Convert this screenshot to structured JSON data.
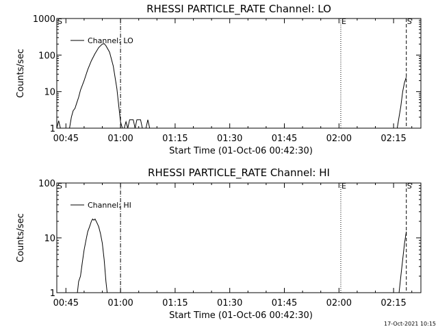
{
  "timestamp": "17-Oct-2021 10:15",
  "chart_data": [
    {
      "type": "line",
      "title": "RHESSI PARTICLE_RATE Channel: LO",
      "xlabel": "Start Time (01-Oct-06 00:42:30)",
      "ylabel": "Counts/sec",
      "yscale": "log",
      "xlim": [
        "00:42:30",
        "02:22:30"
      ],
      "ylim": [
        1,
        1000
      ],
      "xticks": [
        "00:45",
        "01:00",
        "01:15",
        "01:30",
        "01:45",
        "02:00",
        "02:15"
      ],
      "yticks": [
        "1",
        "10",
        "100",
        "1000"
      ],
      "grid": false,
      "legend_position": "top-left",
      "markers": [
        {
          "label": "S",
          "time": "00:42:30",
          "style": "solid"
        },
        {
          "label": "",
          "time": "01:00:00",
          "style": "dash-dot"
        },
        {
          "label": "E",
          "time": "02:00:30",
          "style": "dotted"
        },
        {
          "label": "S",
          "time": "02:18:30",
          "style": "dashed"
        }
      ],
      "series": [
        {
          "name": "Channel: LO",
          "color": "#000000",
          "points": [
            [
              "00:42:30",
              1
            ],
            [
              "00:43:00",
              1.6
            ],
            [
              "00:43:30",
              1
            ],
            [
              "00:46:00",
              1
            ],
            [
              "00:46:30",
              2
            ],
            [
              "00:47:00",
              3
            ],
            [
              "00:47:30",
              3.5
            ],
            [
              "00:48:00",
              5
            ],
            [
              "00:48:30",
              7
            ],
            [
              "00:49:00",
              11
            ],
            [
              "00:50:00",
              20
            ],
            [
              "00:51:00",
              40
            ],
            [
              "00:52:00",
              70
            ],
            [
              "00:53:00",
              110
            ],
            [
              "00:54:00",
              160
            ],
            [
              "00:55:00",
              200
            ],
            [
              "00:55:30",
              205
            ],
            [
              "00:56:00",
              180
            ],
            [
              "00:57:00",
              120
            ],
            [
              "00:58:00",
              50
            ],
            [
              "00:59:00",
              12
            ],
            [
              "00:59:40",
              3
            ],
            [
              "01:00:00",
              1.5
            ],
            [
              "01:00:30",
              1
            ],
            [
              "01:01:00",
              1
            ],
            [
              "01:01:30",
              1.5
            ],
            [
              "01:02:00",
              1
            ],
            [
              "01:02:30",
              1.7
            ],
            [
              "01:03:30",
              1.7
            ],
            [
              "01:04:00",
              1
            ],
            [
              "01:04:30",
              1.7
            ],
            [
              "01:05:30",
              1.7
            ],
            [
              "01:06:00",
              1
            ],
            [
              "01:07:00",
              1
            ],
            [
              "01:07:30",
              1.7
            ],
            [
              "01:08:00",
              1
            ],
            [
              "02:16:00",
              1
            ],
            [
              "02:17:00",
              4
            ],
            [
              "02:17:30",
              10
            ],
            [
              "02:18:00",
              18
            ],
            [
              "02:18:30",
              25
            ]
          ]
        }
      ]
    },
    {
      "type": "line",
      "title": "RHESSI PARTICLE_RATE Channel: HI",
      "xlabel": "Start Time (01-Oct-06 00:42:30)",
      "ylabel": "Counts/sec",
      "yscale": "log",
      "xlim": [
        "00:42:30",
        "02:22:30"
      ],
      "ylim": [
        1,
        100
      ],
      "xticks": [
        "00:45",
        "01:00",
        "01:15",
        "01:30",
        "01:45",
        "02:00",
        "02:15"
      ],
      "yticks": [
        "1",
        "10",
        "100"
      ],
      "grid": false,
      "legend_position": "top-left",
      "markers": [
        {
          "label": "S",
          "time": "00:42:30",
          "style": "solid"
        },
        {
          "label": "",
          "time": "01:00:00",
          "style": "dash-dot"
        },
        {
          "label": "E",
          "time": "02:00:30",
          "style": "dotted"
        },
        {
          "label": "S",
          "time": "02:18:30",
          "style": "dashed"
        }
      ],
      "series": [
        {
          "name": "Channel: HI",
          "color": "#000000",
          "points": [
            [
              "00:48:10",
              1
            ],
            [
              "00:48:30",
              1.6
            ],
            [
              "00:49:00",
              2
            ],
            [
              "00:49:30",
              3.5
            ],
            [
              "00:50:00",
              6
            ],
            [
              "00:50:30",
              9
            ],
            [
              "00:51:00",
              13
            ],
            [
              "00:51:30",
              16
            ],
            [
              "00:52:00",
              20
            ],
            [
              "00:52:20",
              22
            ],
            [
              "00:52:40",
              21
            ],
            [
              "00:53:00",
              22
            ],
            [
              "00:53:30",
              19
            ],
            [
              "00:54:00",
              16
            ],
            [
              "00:54:30",
              12
            ],
            [
              "00:55:00",
              8
            ],
            [
              "00:55:30",
              4
            ],
            [
              "00:56:00",
              1.6
            ],
            [
              "00:56:20",
              1
            ],
            [
              "02:16:30",
              1
            ],
            [
              "02:17:00",
              2
            ],
            [
              "02:17:30",
              4
            ],
            [
              "02:18:00",
              8
            ],
            [
              "02:18:30",
              13
            ]
          ]
        }
      ]
    }
  ]
}
